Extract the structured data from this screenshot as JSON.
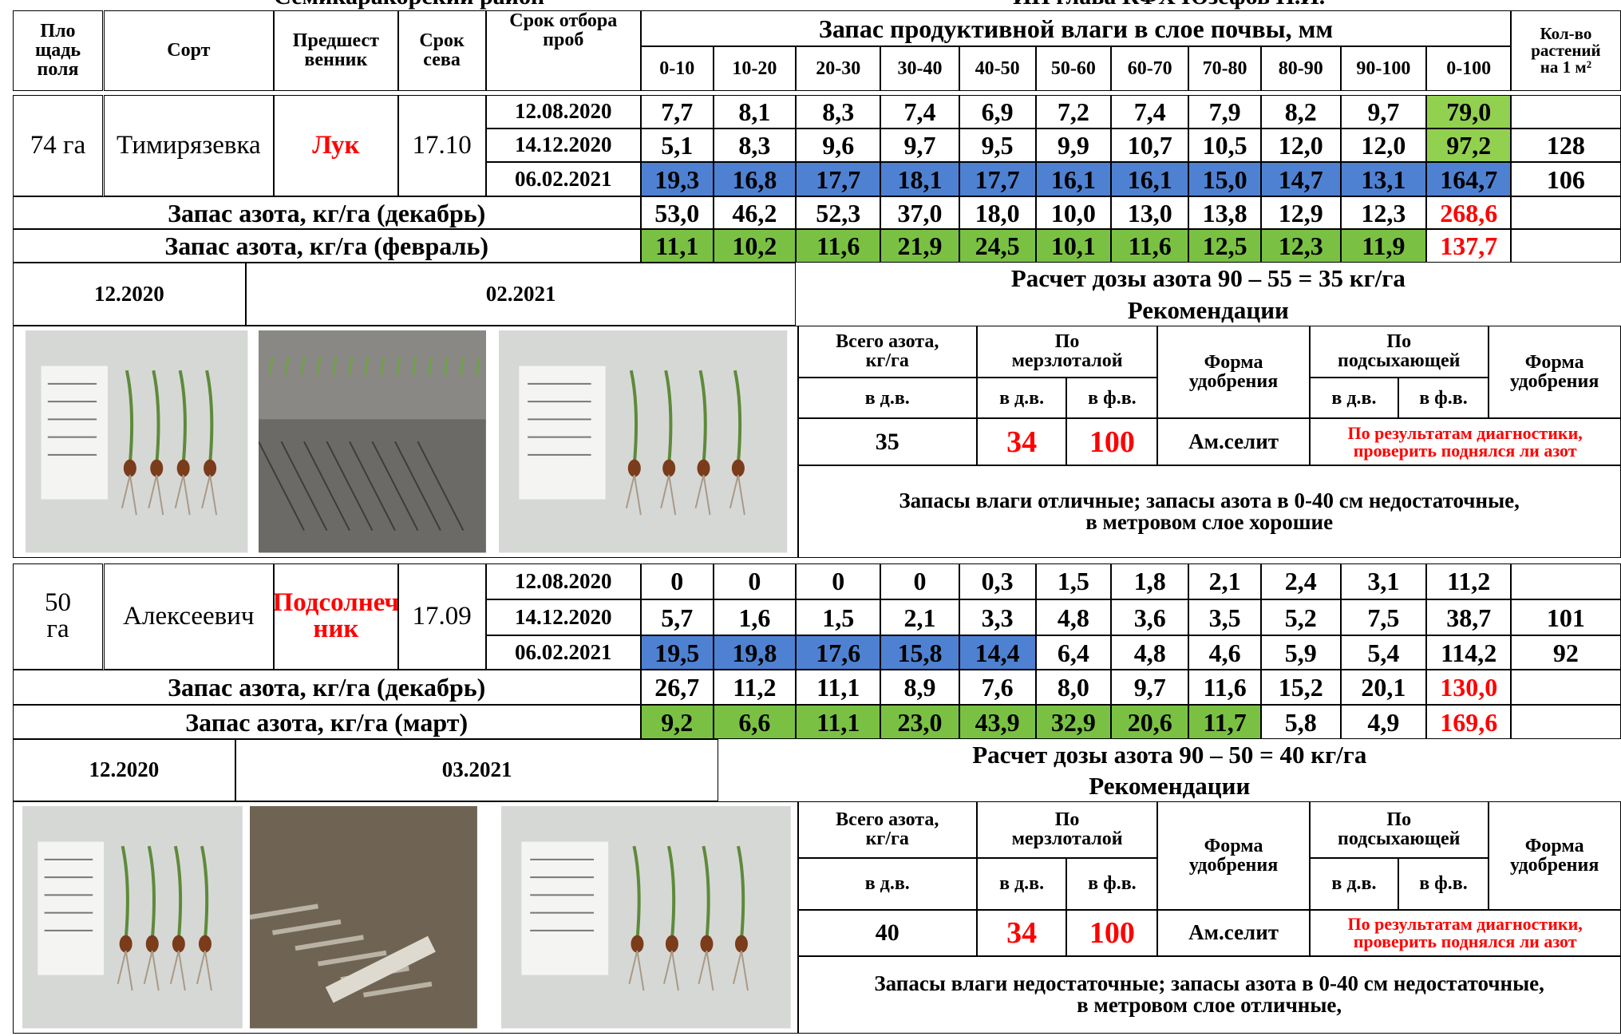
{
  "header": {
    "district": "Семикаракорский район",
    "farm": "ИП глава КФХ Юзефов Н.И."
  },
  "columns": {
    "area": "Пло\nщадь\nполя",
    "variety": "Сорт",
    "predecessor": "Предшест\nвенник",
    "sowing": "Срок\nсева",
    "sampling": "Срок отбора\nпроб",
    "moisture": "Запас продуктивной влаги  в слое почвы, мм",
    "plants": "Кол-во\nрастений\nна 1 м²"
  },
  "layers": [
    "0-10",
    "10-20",
    "20-30",
    "30-40",
    "40-50",
    "50-60",
    "60-70",
    "70-80",
    "80-90",
    "90-100",
    "0-100"
  ],
  "blocks": [
    {
      "area": "74 га",
      "variety": "Тимирязевка",
      "predecessor": "Лук",
      "sowing": "17.10",
      "samples": [
        {
          "date": "12.08.2020",
          "values": [
            "7,7",
            "8,1",
            "8,3",
            "7,4",
            "6,9",
            "7,2",
            "7,4",
            "7,9",
            "8,2",
            "9,7",
            "79,0"
          ],
          "fills": [
            null,
            null,
            null,
            null,
            null,
            null,
            null,
            null,
            null,
            null,
            "#92d050"
          ],
          "plants": null
        },
        {
          "date": "14.12.2020",
          "values": [
            "5,1",
            "8,3",
            "9,6",
            "9,7",
            "9,5",
            "9,9",
            "10,7",
            "10,5",
            "12,0",
            "12,0",
            "97,2"
          ],
          "fills": [
            null,
            null,
            null,
            null,
            null,
            null,
            null,
            null,
            null,
            null,
            "#92d050"
          ],
          "plants": "128"
        },
        {
          "date": "06.02.2021",
          "values": [
            "19,3",
            "16,8",
            "17,7",
            "18,1",
            "17,7",
            "16,1",
            "16,1",
            "15,0",
            "14,7",
            "13,1",
            "164,7"
          ],
          "fills": [
            "#4f81d2",
            "#4f81d2",
            "#4f81d2",
            "#4f81d2",
            "#4f81d2",
            "#4f81d2",
            "#4f81d2",
            "#4f81d2",
            "#4f81d2",
            "#4f81d2",
            "#4f81d2"
          ],
          "plants": "106"
        }
      ],
      "nitrogen": [
        {
          "label": "Запас азота, кг/га (декабрь)",
          "values": [
            "53,0",
            "46,2",
            "52,3",
            "37,0",
            "18,0",
            "10,0",
            "13,0",
            "13,8",
            "12,9",
            "12,3",
            "268,6"
          ],
          "fills": [
            null,
            null,
            null,
            null,
            null,
            null,
            null,
            null,
            null,
            null,
            null
          ]
        },
        {
          "label": "Запас азота, кг/га (февраль)",
          "values": [
            "11,1",
            "10,2",
            "11,6",
            "21,9",
            "24,5",
            "10,1",
            "11,6",
            "12,5",
            "12,3",
            "11,9",
            "137,7"
          ],
          "fills": [
            "#7ac143",
            "#7ac143",
            "#7ac143",
            "#7ac143",
            "#7ac143",
            "#7ac143",
            "#7ac143",
            "#7ac143",
            "#7ac143",
            "#7ac143",
            null
          ]
        }
      ],
      "photo_labels": [
        "12.2020",
        "02.2021"
      ],
      "calculation": "Расчет дозы азота 90 – 55 = 35 кг/га",
      "recommendations_title": "Рекомендации",
      "recommendation": {
        "total": "Всего азота,\nкг/га",
        "frozen": "По\nмерзлоталой",
        "form": "Форма\nудобрения",
        "drying": "По\nподсыхающей",
        "form2": "Форма\nудобрения",
        "av1": "в д.в.",
        "av2": "в д.в.",
        "ph2": "в ф.в.",
        "av3": "в д.в.",
        "ph3": "в ф.в.",
        "total_value": "35",
        "frozen_av": "34",
        "frozen_ph": "100",
        "form_value": "Ам.селит",
        "drying_note": "По результатам диагностики,\nпроверить поднялся ли азот"
      },
      "conclusion": "Запасы влаги отличные; запасы азота в 0-40 см недостаточные,\nв метровом слое хорошие"
    },
    {
      "area": "50\nга",
      "variety": "Алексеевич",
      "predecessor": "Подсолнеч\nник",
      "sowing": "17.09",
      "samples": [
        {
          "date": "12.08.2020",
          "values": [
            "0",
            "0",
            "0",
            "0",
            "0,3",
            "1,5",
            "1,8",
            "2,1",
            "2,4",
            "3,1",
            "11,2"
          ],
          "fills": [
            null,
            null,
            null,
            null,
            null,
            null,
            null,
            null,
            null,
            null,
            null
          ],
          "plants": null
        },
        {
          "date": "14.12.2020",
          "values": [
            "5,7",
            "1,6",
            "1,5",
            "2,1",
            "3,3",
            "4,8",
            "3,6",
            "3,5",
            "5,2",
            "7,5",
            "38,7"
          ],
          "fills": [
            null,
            null,
            null,
            null,
            null,
            null,
            null,
            null,
            null,
            null,
            null
          ],
          "plants": "101"
        },
        {
          "date": "06.02.2021",
          "values": [
            "19,5",
            "19,8",
            "17,6",
            "15,8",
            "14,4",
            "6,4",
            "4,8",
            "4,6",
            "5,9",
            "5,4",
            "114,2"
          ],
          "fills": [
            "#4f81d2",
            "#4f81d2",
            "#4f81d2",
            "#4f81d2",
            "#4f81d2",
            null,
            null,
            null,
            null,
            null,
            null
          ],
          "plants": "92"
        }
      ],
      "nitrogen": [
        {
          "label": "Запас азота, кг/га (декабрь)",
          "values": [
            "26,7",
            "11,2",
            "11,1",
            "8,9",
            "7,6",
            "8,0",
            "9,7",
            "11,6",
            "15,2",
            "20,1",
            "130,0"
          ],
          "fills": [
            null,
            null,
            null,
            null,
            null,
            null,
            null,
            null,
            null,
            null,
            null
          ]
        },
        {
          "label": "Запас азота, кг/га (март)",
          "values": [
            "9,2",
            "6,6",
            "11,1",
            "23,0",
            "43,9",
            "32,9",
            "20,6",
            "11,7",
            "5,8",
            "4,9",
            "169,6"
          ],
          "fills": [
            "#7ac143",
            "#7ac143",
            "#7ac143",
            "#7ac143",
            "#7ac143",
            "#7ac143",
            "#7ac143",
            "#7ac143",
            null,
            null,
            null
          ]
        }
      ],
      "photo_labels": [
        "12.2020",
        "03.2021"
      ],
      "calculation": "Расчет дозы азота 90 – 50 = 40 кг/га",
      "recommendations_title": "Рекомендации",
      "recommendation": {
        "total": "Всего азота,\nкг/га",
        "frozen": "По\nмерзлоталой",
        "form": "Форма\nудобрения",
        "drying": "По\nподсыхающей",
        "form2": "Форма\nудобрения",
        "av1": "в д.в.",
        "av2": "в д.в.",
        "ph2": "в ф.в.",
        "av3": "в д.в.",
        "ph3": "в ф.в.",
        "total_value": "40",
        "frozen_av": "34",
        "frozen_ph": "100",
        "form_value": "Ам.селит",
        "drying_note": "По результатам диагностики,\nпроверить поднялся ли азот"
      },
      "conclusion": "Запасы влаги недостаточные; запасы азота в 0-40 см недостаточные,\nв метровом слое отличные,"
    }
  ]
}
